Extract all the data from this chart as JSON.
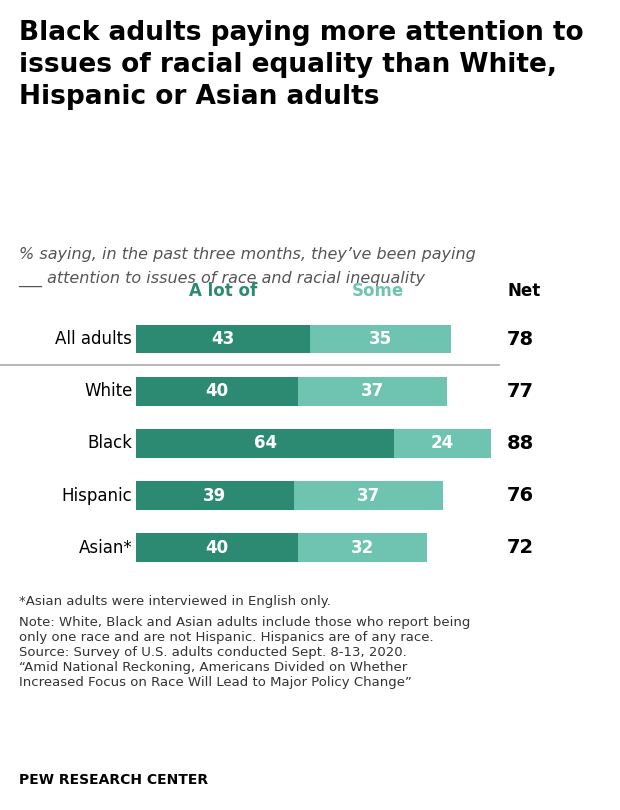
{
  "title": "Black adults paying more attention to\nissues of racial equality than White,\nHispanic or Asian adults",
  "subtitle_line1": "% saying, in the past three months, they’ve been paying",
  "subtitle_line2": "___ attention to issues of race and racial inequality",
  "categories": [
    "All adults",
    "White",
    "Black",
    "Hispanic",
    "Asian*"
  ],
  "a_lot_of": [
    43,
    40,
    64,
    39,
    40
  ],
  "some": [
    35,
    37,
    24,
    37,
    32
  ],
  "net": [
    78,
    77,
    88,
    76,
    72
  ],
  "color_alot": "#2d8a72",
  "color_some": "#6ec4b0",
  "legend_alot_label": "A lot of",
  "legend_some_label": "Some",
  "net_label": "Net",
  "footnote1": "*Asian adults were interviewed in English only.",
  "footnote2": "Note: White, Black and Asian adults include those who report being\nonly one race and are not Hispanic. Hispanics are of any race.\nSource: Survey of U.S. adults conducted Sept. 8-13, 2020.\n“Amid National Reckoning, Americans Divided on Whether\nIncreased Focus on Race Will Lead to Major Policy Change”",
  "pew_label": "PEW RESEARCH CENTER",
  "background_color": "#ffffff",
  "bar_height": 0.55,
  "title_fontsize": 19,
  "subtitle_fontsize": 11.5,
  "cat_fontsize": 12,
  "bar_label_fontsize": 12,
  "legend_fontsize": 12,
  "net_fontsize": 14,
  "footnote_fontsize": 9.5,
  "pew_fontsize": 10,
  "sep_color": "#aaaaaa",
  "xlim_max": 100
}
